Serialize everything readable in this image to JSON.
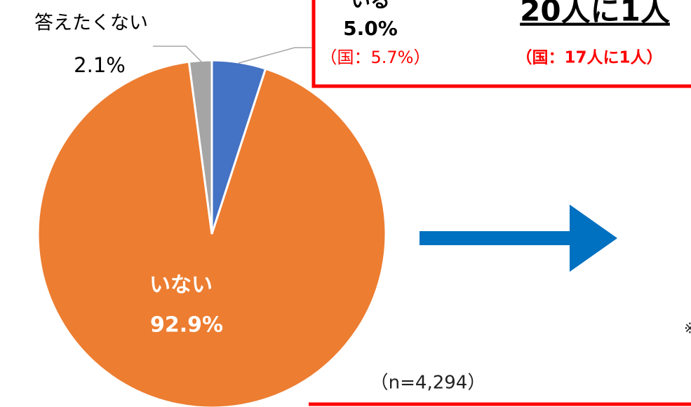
{
  "chart_data": {
    "type": "pie",
    "categories": [
      "いる",
      "いない",
      "答えたくない"
    ],
    "values": [
      5.0,
      92.9,
      2.1
    ],
    "value_labels": [
      "5.0%",
      "92.9%",
      "2.1%"
    ],
    "colors": [
      "#4472c4",
      "#ed7d31",
      "#a5a5a5"
    ],
    "annotations": {
      "national_rate": "（国：5.7%）",
      "ratio": "20人に1人",
      "national_ratio": "（国：17人に1人）",
      "sample": "（n=4,294）",
      "note": "※"
    }
  }
}
